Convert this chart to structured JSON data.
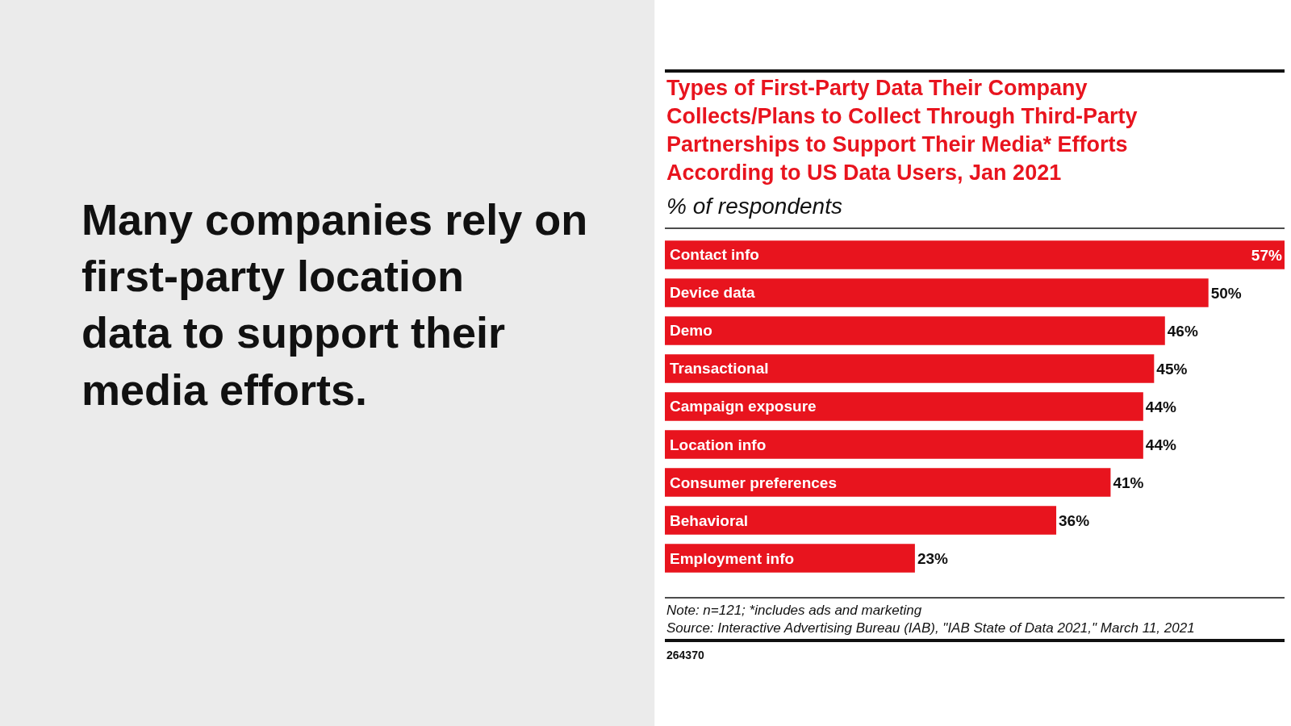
{
  "chart_data": {
    "type": "bar",
    "orientation": "horizontal",
    "title": "Types of First-Party Data Their Company Collects/Plans to Collect Through Third-Party Partnerships to Support Their Media* Efforts According to US Data Users, Jan 2021",
    "subtitle": "% of respondents",
    "categories": [
      "Contact info",
      "Device data",
      "Demo",
      "Transactional",
      "Campaign exposure",
      "Location info",
      "Consumer preferences",
      "Behavioral",
      "Employment info"
    ],
    "values": [
      57,
      50,
      46,
      45,
      44,
      44,
      41,
      36,
      23
    ],
    "value_labels": [
      "57%",
      "50%",
      "46%",
      "45%",
      "44%",
      "44%",
      "41%",
      "36%",
      "23%"
    ],
    "color": "#e8141e",
    "annotations": [
      "Many companies rely on first-party location data to support their media efforts.",
      "Note: n=121; *includes ads and marketing",
      "Source: Interactive Advertising Bureau (IAB), \"IAB State of Data 2021,\" March 11, 2021",
      "264370"
    ]
  }
}
